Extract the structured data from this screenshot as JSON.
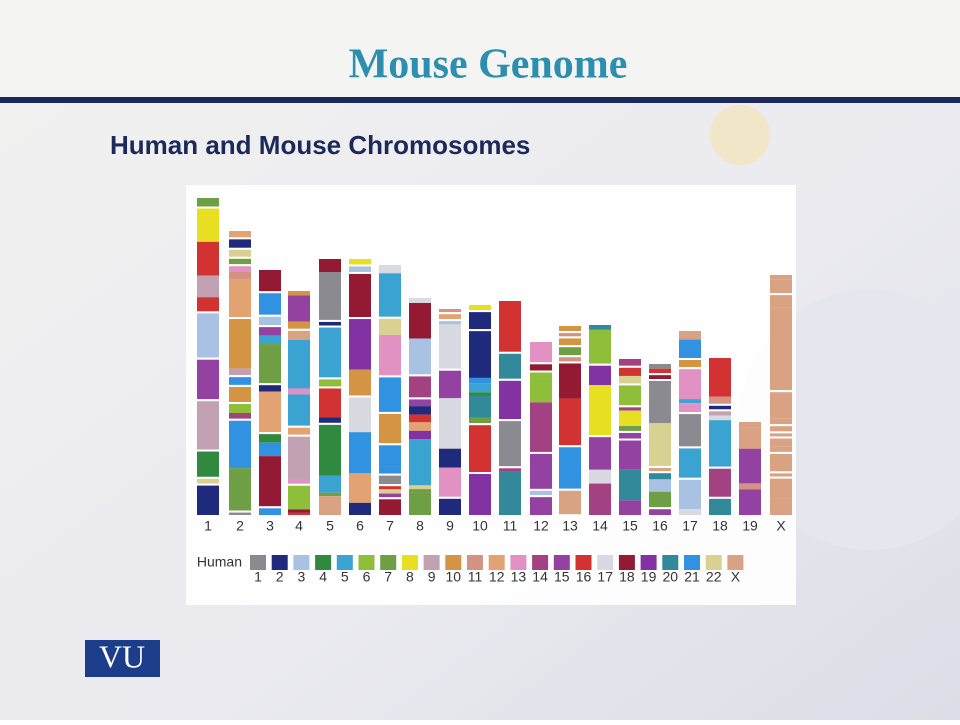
{
  "header": {
    "title": "Mouse Genome",
    "subtitle": "Human and Mouse Chromosomes"
  },
  "mouse_chromosomes": [
    "1",
    "2",
    "3",
    "4",
    "5",
    "6",
    "7",
    "8",
    "9",
    "10",
    "11",
    "12",
    "13",
    "14",
    "15",
    "16",
    "17",
    "18",
    "19",
    "X"
  ],
  "legend": {
    "title": "Human",
    "items": [
      {
        "label": "1",
        "color": "#8a8a90"
      },
      {
        "label": "2",
        "color": "#1f2a7c"
      },
      {
        "label": "3",
        "color": "#a9c1e2"
      },
      {
        "label": "4",
        "color": "#2f8a3f"
      },
      {
        "label": "5",
        "color": "#3aa3d2"
      },
      {
        "label": "6",
        "color": "#8fbf3a"
      },
      {
        "label": "7",
        "color": "#6e9f45"
      },
      {
        "label": "8",
        "color": "#e6df22"
      },
      {
        "label": "9",
        "color": "#c2a2b2"
      },
      {
        "label": "10",
        "color": "#d39444"
      },
      {
        "label": "11",
        "color": "#d39282"
      },
      {
        "label": "12",
        "color": "#e2a272"
      },
      {
        "label": "13",
        "color": "#e292c2"
      },
      {
        "label": "14",
        "color": "#a24282"
      },
      {
        "label": "15",
        "color": "#9342a2"
      },
      {
        "label": "16",
        "color": "#d33232"
      },
      {
        "label": "17",
        "color": "#d9d9e2"
      },
      {
        "label": "18",
        "color": "#931a32"
      },
      {
        "label": "19",
        "color": "#8232a2"
      },
      {
        "label": "20",
        "color": "#32899a"
      },
      {
        "label": "21",
        "color": "#3292e2"
      },
      {
        "label": "22",
        "color": "#d9d192"
      },
      {
        "label": "X",
        "color": "#d9a282"
      }
    ]
  },
  "logo": "VU"
}
